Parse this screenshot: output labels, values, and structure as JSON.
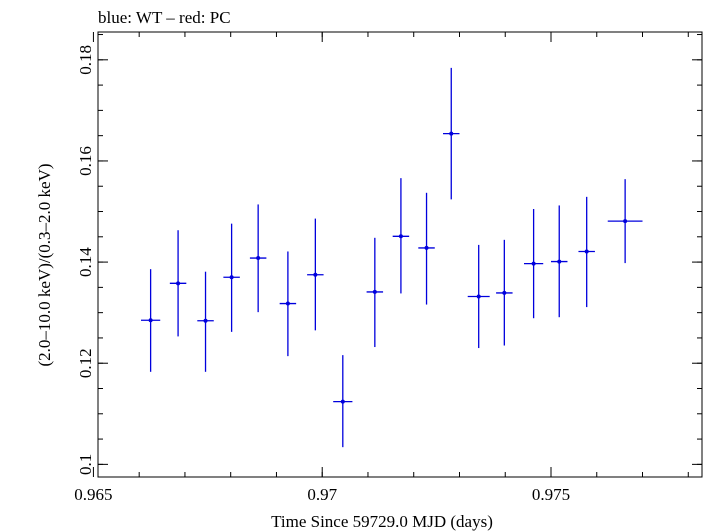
{
  "chart_data": {
    "type": "scatter",
    "title": "blue: WT – red: PC",
    "xlabel": "Time Since 59729.0 MJD (days)",
    "ylabel": "(2.0–10.0 keV)/(0.3–2.0 keV)",
    "xlim": [
      0.9651,
      0.9783
    ],
    "ylim": [
      0.0975,
      0.1855
    ],
    "xticks": [
      0.965,
      0.97,
      0.975
    ],
    "xtick_labels": [
      "0.965",
      "0.97",
      "0.975"
    ],
    "yticks": [
      0.1,
      0.12,
      0.14,
      0.16,
      0.18
    ],
    "ytick_labels": [
      "0.1",
      "0.12",
      "0.14",
      "0.16",
      "0.18"
    ],
    "grid": false,
    "series": [
      {
        "color": "#0000dd",
        "points": [
          {
            "x": 0.96625,
            "xerr": 0.00021,
            "y": 0.1285,
            "yerr_low": 0.0102,
            "yerr_high": 0.0101
          },
          {
            "x": 0.96685,
            "xerr": 0.00018,
            "y": 0.1358,
            "yerr_low": 0.0105,
            "yerr_high": 0.0105
          },
          {
            "x": 0.96745,
            "xerr": 0.00018,
            "y": 0.1284,
            "yerr_low": 0.0101,
            "yerr_high": 0.0097
          },
          {
            "x": 0.96802,
            "xerr": 0.00018,
            "y": 0.137,
            "yerr_low": 0.0108,
            "yerr_high": 0.0106
          },
          {
            "x": 0.9686,
            "xerr": 0.00018,
            "y": 0.1408,
            "yerr_low": 0.0107,
            "yerr_high": 0.0106
          },
          {
            "x": 0.96925,
            "xerr": 0.00018,
            "y": 0.1318,
            "yerr_low": 0.0104,
            "yerr_high": 0.0103
          },
          {
            "x": 0.96985,
            "xerr": 0.00018,
            "y": 0.1375,
            "yerr_low": 0.011,
            "yerr_high": 0.0111
          },
          {
            "x": 0.97045,
            "xerr": 0.00021,
            "y": 0.1124,
            "yerr_low": 0.009,
            "yerr_high": 0.0092
          },
          {
            "x": 0.97115,
            "xerr": 0.00018,
            "y": 0.1341,
            "yerr_low": 0.0109,
            "yerr_high": 0.0107
          },
          {
            "x": 0.97172,
            "xerr": 0.00018,
            "y": 0.1451,
            "yerr_low": 0.0113,
            "yerr_high": 0.0115
          },
          {
            "x": 0.97228,
            "xerr": 0.00018,
            "y": 0.1428,
            "yerr_low": 0.0112,
            "yerr_high": 0.0109
          },
          {
            "x": 0.97282,
            "xerr": 0.00018,
            "y": 0.1654,
            "yerr_low": 0.013,
            "yerr_high": 0.013
          },
          {
            "x": 0.97342,
            "xerr": 0.00024,
            "y": 0.1332,
            "yerr_low": 0.0102,
            "yerr_high": 0.0102
          },
          {
            "x": 0.97398,
            "xerr": 0.00018,
            "y": 0.1339,
            "yerr_low": 0.0104,
            "yerr_high": 0.0105
          },
          {
            "x": 0.97462,
            "xerr": 0.00021,
            "y": 0.1397,
            "yerr_low": 0.0108,
            "yerr_high": 0.0108
          },
          {
            "x": 0.97518,
            "xerr": 0.00018,
            "y": 0.1401,
            "yerr_low": 0.011,
            "yerr_high": 0.0111
          },
          {
            "x": 0.97578,
            "xerr": 0.00018,
            "y": 0.1421,
            "yerr_low": 0.011,
            "yerr_high": 0.0108
          },
          {
            "x": 0.97662,
            "xerr": 0.00038,
            "y": 0.1481,
            "yerr_low": 0.0083,
            "yerr_high": 0.0083
          }
        ]
      }
    ]
  }
}
